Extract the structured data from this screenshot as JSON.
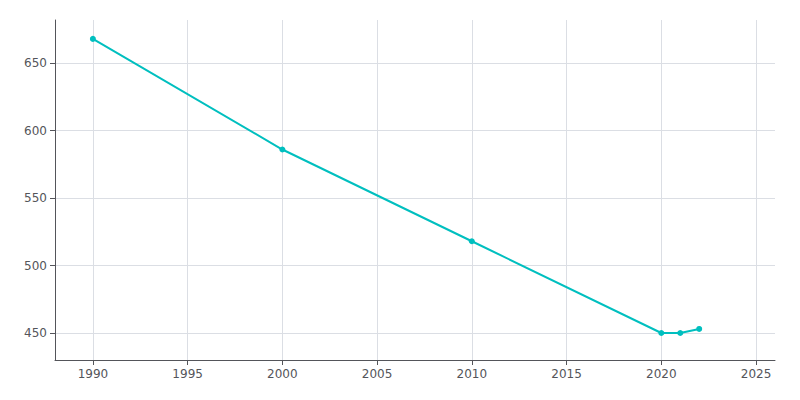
{
  "chart_data": {
    "type": "line",
    "x": [
      1990,
      2000,
      2010,
      2020,
      2021,
      2022
    ],
    "values": [
      668,
      586,
      518,
      450,
      450,
      453
    ],
    "color": "#00BFBF",
    "marker": "circle",
    "xlim": [
      1988,
      2026
    ],
    "xticks": [
      1990,
      1995,
      2000,
      2005,
      2010,
      2015,
      2020,
      2025
    ],
    "ylim": [
      430,
      682
    ],
    "yticks": [
      450,
      500,
      550,
      600,
      650
    ],
    "grid": true
  }
}
